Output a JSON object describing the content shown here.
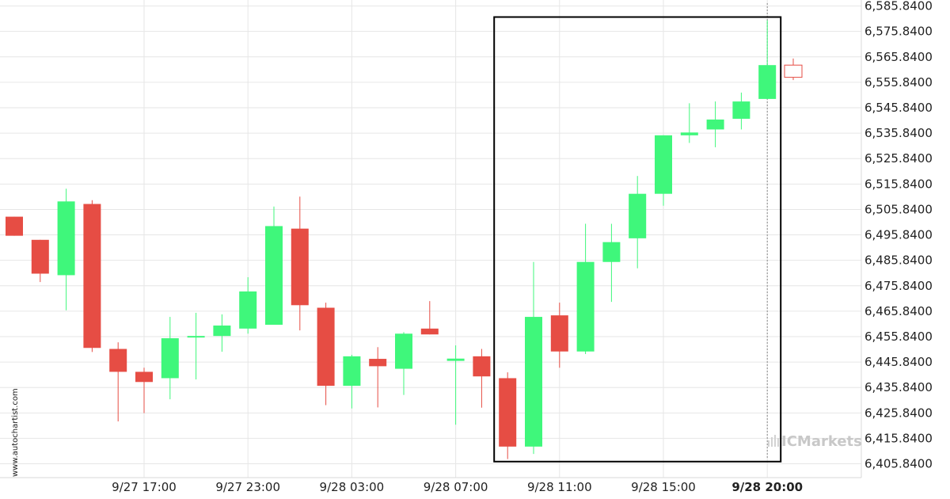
{
  "chart_data": {
    "type": "candlestick",
    "y_ticks": [
      "6,585.8400",
      "6,575.8400",
      "6,565.8400",
      "6,555.8400",
      "6,545.8400",
      "6,535.8400",
      "6,525.8400",
      "6,515.8400",
      "6,505.8400",
      "6,495.8400",
      "6,485.8400",
      "6,475.8400",
      "6,465.8400",
      "6,455.8400",
      "6,445.8400",
      "6,435.8400",
      "6,425.8400",
      "6,415.8400",
      "6,405.8400"
    ],
    "ylim": [
      6400.4,
      6588.2
    ],
    "x_ticks": [
      {
        "label": "9/27 17:00",
        "index": 5,
        "bold": false
      },
      {
        "label": "9/27 23:00",
        "index": 9,
        "bold": false
      },
      {
        "label": "9/28 03:00",
        "index": 13,
        "bold": false
      },
      {
        "label": "9/28 07:00",
        "index": 17,
        "bold": false
      },
      {
        "label": "9/28 11:00",
        "index": 21,
        "bold": false
      },
      {
        "label": "9/28 15:00",
        "index": 25,
        "bold": false
      },
      {
        "label": "9/28 20:00",
        "index": 29,
        "bold": true
      }
    ],
    "candles": [
      {
        "o": 6503.0,
        "h": 6503.0,
        "l": 6495.5,
        "c": 6495.5
      },
      {
        "o": 6493.9,
        "h": 6493.9,
        "l": 6477.3,
        "c": 6480.6
      },
      {
        "o": 6480.0,
        "h": 6514.0,
        "l": 6466.2,
        "c": 6509.0
      },
      {
        "o": 6508.0,
        "h": 6509.5,
        "l": 6449.8,
        "c": 6451.4
      },
      {
        "o": 6451.0,
        "h": 6453.6,
        "l": 6422.5,
        "c": 6442.0
      },
      {
        "o": 6442.0,
        "h": 6443.6,
        "l": 6425.8,
        "c": 6438.0
      },
      {
        "o": 6439.5,
        "h": 6463.6,
        "l": 6431.2,
        "c": 6455.2
      },
      {
        "o": 6455.8,
        "h": 6465.2,
        "l": 6439.0,
        "c": 6456.1
      },
      {
        "o": 6456.1,
        "h": 6464.6,
        "l": 6449.9,
        "c": 6460.2
      },
      {
        "o": 6459.0,
        "h": 6479.2,
        "l": 6457.0,
        "c": 6473.6
      },
      {
        "o": 6460.5,
        "h": 6507.0,
        "l": 6460.5,
        "c": 6499.3
      },
      {
        "o": 6498.3,
        "h": 6510.9,
        "l": 6458.3,
        "c": 6468.2
      },
      {
        "o": 6467.2,
        "h": 6469.2,
        "l": 6428.9,
        "c": 6436.5
      },
      {
        "o": 6436.5,
        "h": 6448.7,
        "l": 6427.6,
        "c": 6448.1
      },
      {
        "o": 6447.1,
        "h": 6451.7,
        "l": 6428.0,
        "c": 6444.2
      },
      {
        "o": 6443.2,
        "h": 6457.6,
        "l": 6432.9,
        "c": 6457.0
      },
      {
        "o": 6459.0,
        "h": 6469.8,
        "l": 6456.7,
        "c": 6456.7
      },
      {
        "o": 6446.3,
        "h": 6452.4,
        "l": 6421.2,
        "c": 6447.2
      },
      {
        "o": 6448.1,
        "h": 6451.0,
        "l": 6427.9,
        "c": 6440.2
      },
      {
        "o": 6439.5,
        "h": 6441.8,
        "l": 6407.7,
        "c": 6412.6
      },
      {
        "o": 6412.6,
        "h": 6485.2,
        "l": 6409.7,
        "c": 6463.6
      },
      {
        "o": 6464.2,
        "h": 6469.2,
        "l": 6443.6,
        "c": 6450.0
      },
      {
        "o": 6450.0,
        "h": 6500.2,
        "l": 6449.0,
        "c": 6485.2
      },
      {
        "o": 6485.2,
        "h": 6500.2,
        "l": 6469.5,
        "c": 6493.0
      },
      {
        "o": 6494.5,
        "h": 6519.0,
        "l": 6482.7,
        "c": 6512.0
      },
      {
        "o": 6512.0,
        "h": 6535.0,
        "l": 6507.3,
        "c": 6535.0
      },
      {
        "o": 6535.0,
        "h": 6547.6,
        "l": 6532.0,
        "c": 6536.1
      },
      {
        "o": 6537.3,
        "h": 6548.3,
        "l": 6530.3,
        "c": 6541.2
      },
      {
        "o": 6541.5,
        "h": 6551.8,
        "l": 6537.3,
        "c": 6548.3
      },
      {
        "o": 6549.3,
        "h": 6580.2,
        "l": 6549.3,
        "c": 6562.6
      },
      {
        "o": 6557.8,
        "h": 6565.2,
        "l": 6556.7,
        "c": 6562.6,
        "hollow": true
      }
    ],
    "pattern_box": {
      "start_index": 19,
      "end_index": 29,
      "y_top": 6581.5,
      "y_bottom": 6406.7
    },
    "current_time_index": 29,
    "colors": {
      "up": "#3ff77b",
      "down": "#e64d44",
      "grid": "#e6e6e6",
      "box": "#000000"
    },
    "grid": true
  },
  "watermark": {
    "site": "www.autochartist.com",
    "brand": "ICMarkets"
  }
}
